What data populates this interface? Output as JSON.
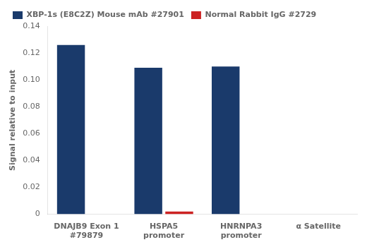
{
  "chart_data": {
    "type": "bar",
    "categories": [
      "DNAJB9 Exon 1\n#79879",
      "HSPA5\npromoter",
      "HNRNPA3\npromoter",
      "α Satellite"
    ],
    "series": [
      {
        "name": "XBP-1s (E8C2Z) Mouse mAb #27901",
        "color": "#1a3a6b",
        "values": [
          0.126,
          0.109,
          0.11,
          0.0
        ]
      },
      {
        "name": "Normal Rabbit IgG #2729",
        "color": "#cc2222",
        "values": [
          0.0,
          0.002,
          0.0,
          0.0
        ]
      }
    ],
    "ylabel": "Signal relative to input",
    "ylim": [
      0,
      0.14
    ],
    "yticks": [
      0,
      0.02,
      0.04,
      0.06,
      0.08,
      {
        "value": 0.1,
        "label": "0.10"
      },
      0.12,
      0.14
    ],
    "grid": false,
    "legend": "upper left"
  }
}
